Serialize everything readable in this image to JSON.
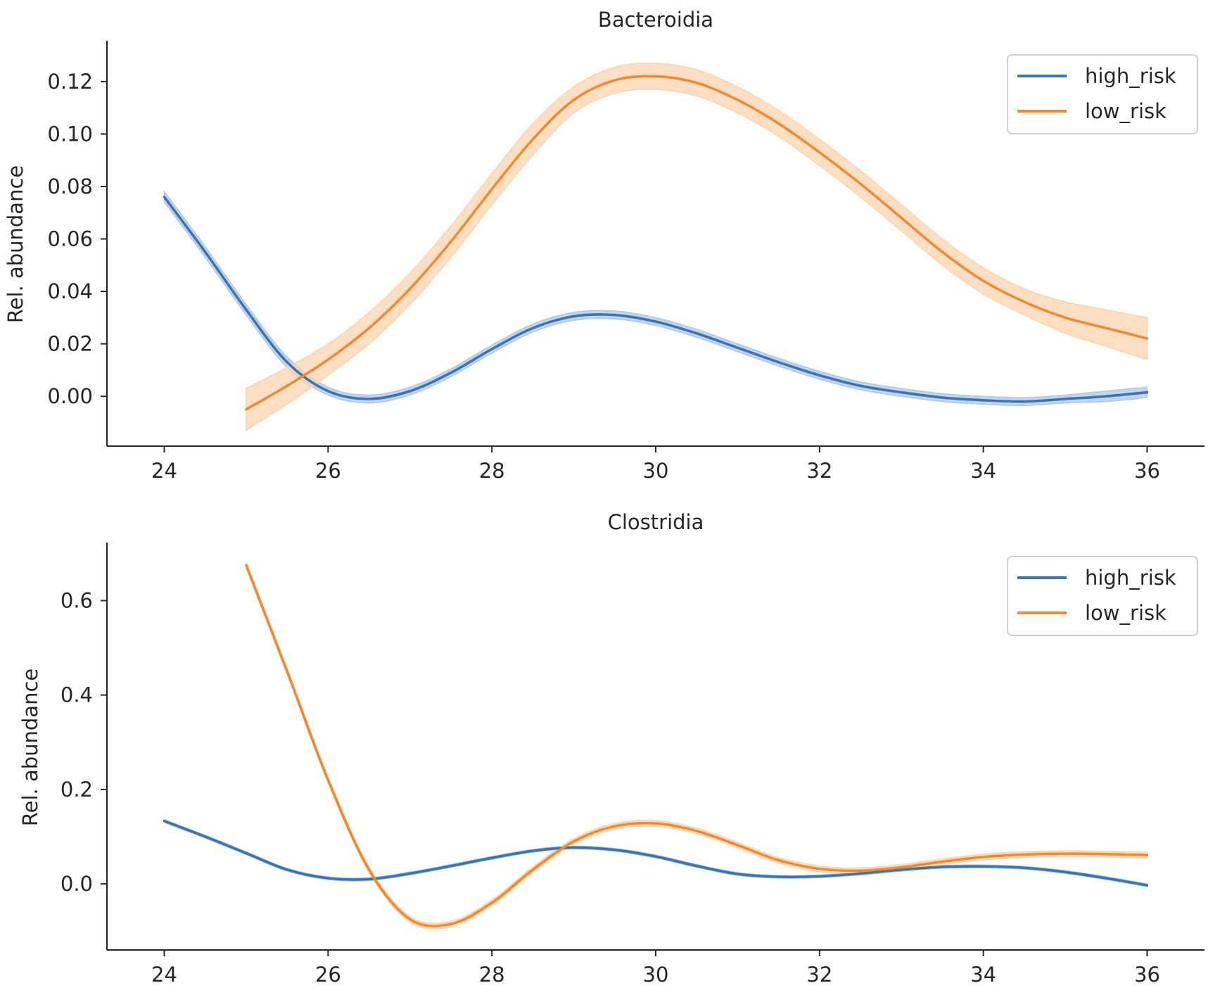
{
  "chart_data": [
    {
      "type": "line",
      "title": "Bacteroidia",
      "xlabel": "",
      "ylabel": "Rel. abundance",
      "xlim": [
        23.3,
        36.7
      ],
      "ylim": [
        -0.019,
        0.135
      ],
      "xticks": [
        24,
        26,
        28,
        30,
        32,
        34,
        36
      ],
      "xtick_labels": [
        "24",
        "26",
        "28",
        "30",
        "32",
        "34",
        "36"
      ],
      "yticks": [
        0.0,
        0.02,
        0.04,
        0.06,
        0.08,
        0.1,
        0.12
      ],
      "ytick_labels": [
        "0.00",
        "0.02",
        "0.04",
        "0.06",
        "0.08",
        "0.10",
        "0.12"
      ],
      "grid": false,
      "legend_position": "top-right",
      "series": [
        {
          "name": "high_risk",
          "color": "#3a75b0",
          "band_color": "#aec7e8",
          "x": [
            24,
            24.5,
            25,
            25.5,
            26,
            26.5,
            27,
            27.5,
            28,
            28.5,
            29,
            29.5,
            30,
            30.5,
            31,
            31.5,
            32,
            32.5,
            33,
            33.5,
            34,
            34.5,
            35,
            35.5,
            36
          ],
          "y": [
            0.076,
            0.055,
            0.033,
            0.013,
            0.002,
            -0.001,
            0.002,
            0.009,
            0.018,
            0.026,
            0.0305,
            0.031,
            0.0285,
            0.024,
            0.0185,
            0.013,
            0.008,
            0.004,
            0.0015,
            -0.0005,
            -0.0015,
            -0.002,
            -0.001,
            0.0,
            0.0015
          ],
          "band": [
            0.002,
            0.002,
            0.002,
            0.002,
            0.0015,
            0.0015,
            0.0015,
            0.0015,
            0.0015,
            0.0015,
            0.0015,
            0.0015,
            0.0015,
            0.0015,
            0.0015,
            0.0015,
            0.0015,
            0.0015,
            0.0015,
            0.0015,
            0.0015,
            0.0015,
            0.0015,
            0.002,
            0.002
          ]
        },
        {
          "name": "low_risk",
          "color": "#ef8a32",
          "band_color": "#fbd4ad",
          "x": [
            25,
            25.5,
            26,
            26.5,
            27,
            27.5,
            28,
            28.5,
            29,
            29.5,
            30,
            30.5,
            31,
            31.5,
            32,
            32.5,
            33,
            33.5,
            34,
            34.5,
            35,
            35.5,
            36
          ],
          "y": [
            -0.005,
            0.004,
            0.014,
            0.026,
            0.041,
            0.059,
            0.079,
            0.098,
            0.113,
            0.1205,
            0.122,
            0.1195,
            0.113,
            0.104,
            0.093,
            0.081,
            0.068,
            0.055,
            0.044,
            0.036,
            0.03,
            0.026,
            0.022
          ],
          "band": [
            0.008,
            0.007,
            0.006,
            0.006,
            0.006,
            0.006,
            0.006,
            0.006,
            0.005,
            0.005,
            0.005,
            0.005,
            0.005,
            0.005,
            0.005,
            0.005,
            0.005,
            0.005,
            0.005,
            0.005,
            0.006,
            0.007,
            0.008
          ]
        }
      ]
    },
    {
      "type": "line",
      "title": "Clostridia",
      "xlabel": "",
      "ylabel": "Rel. abundance",
      "xlim": [
        23.3,
        36.7
      ],
      "ylim": [
        -0.14,
        0.72
      ],
      "xticks": [
        24,
        26,
        28,
        30,
        32,
        34,
        36
      ],
      "xtick_labels": [
        "24",
        "26",
        "28",
        "30",
        "32",
        "34",
        "36"
      ],
      "yticks": [
        0.0,
        0.2,
        0.4,
        0.6
      ],
      "ytick_labels": [
        "0.0",
        "0.2",
        "0.4",
        "0.6"
      ],
      "grid": false,
      "legend_position": "top-right",
      "series": [
        {
          "name": "high_risk",
          "color": "#3a75b0",
          "band_color": "#aec7e8",
          "x": [
            24,
            24.5,
            25,
            25.5,
            26,
            26.5,
            27,
            27.5,
            28,
            28.5,
            29,
            29.5,
            30,
            30.5,
            31,
            31.5,
            32,
            32.5,
            33,
            33.5,
            34,
            34.5,
            35,
            35.5,
            36
          ],
          "y": [
            0.133,
            0.1,
            0.065,
            0.03,
            0.012,
            0.01,
            0.022,
            0.038,
            0.055,
            0.07,
            0.077,
            0.072,
            0.058,
            0.038,
            0.021,
            0.015,
            0.016,
            0.022,
            0.03,
            0.036,
            0.037,
            0.034,
            0.025,
            0.012,
            -0.003
          ],
          "band": [
            0.003,
            0.003,
            0.003,
            0.003,
            0.003,
            0.003,
            0.003,
            0.003,
            0.003,
            0.003,
            0.003,
            0.003,
            0.003,
            0.003,
            0.003,
            0.003,
            0.003,
            0.003,
            0.003,
            0.003,
            0.003,
            0.003,
            0.003,
            0.003,
            0.003
          ]
        },
        {
          "name": "low_risk",
          "color": "#ef8a32",
          "band_color": "#fbd4ad",
          "x": [
            25,
            25.5,
            26,
            26.5,
            27,
            27.5,
            28,
            28.5,
            29,
            29.5,
            30,
            30.5,
            31,
            31.5,
            32,
            32.5,
            33,
            33.5,
            34,
            34.5,
            35,
            35.5,
            36
          ],
          "y": [
            0.675,
            0.45,
            0.22,
            0.03,
            -0.075,
            -0.085,
            -0.04,
            0.03,
            0.09,
            0.122,
            0.128,
            0.112,
            0.082,
            0.05,
            0.032,
            0.028,
            0.035,
            0.047,
            0.057,
            0.062,
            0.064,
            0.063,
            0.061
          ],
          "band": [
            0.006,
            0.006,
            0.006,
            0.006,
            0.006,
            0.006,
            0.006,
            0.006,
            0.006,
            0.006,
            0.006,
            0.006,
            0.006,
            0.006,
            0.006,
            0.006,
            0.006,
            0.006,
            0.006,
            0.006,
            0.006,
            0.006,
            0.006
          ]
        }
      ]
    }
  ]
}
